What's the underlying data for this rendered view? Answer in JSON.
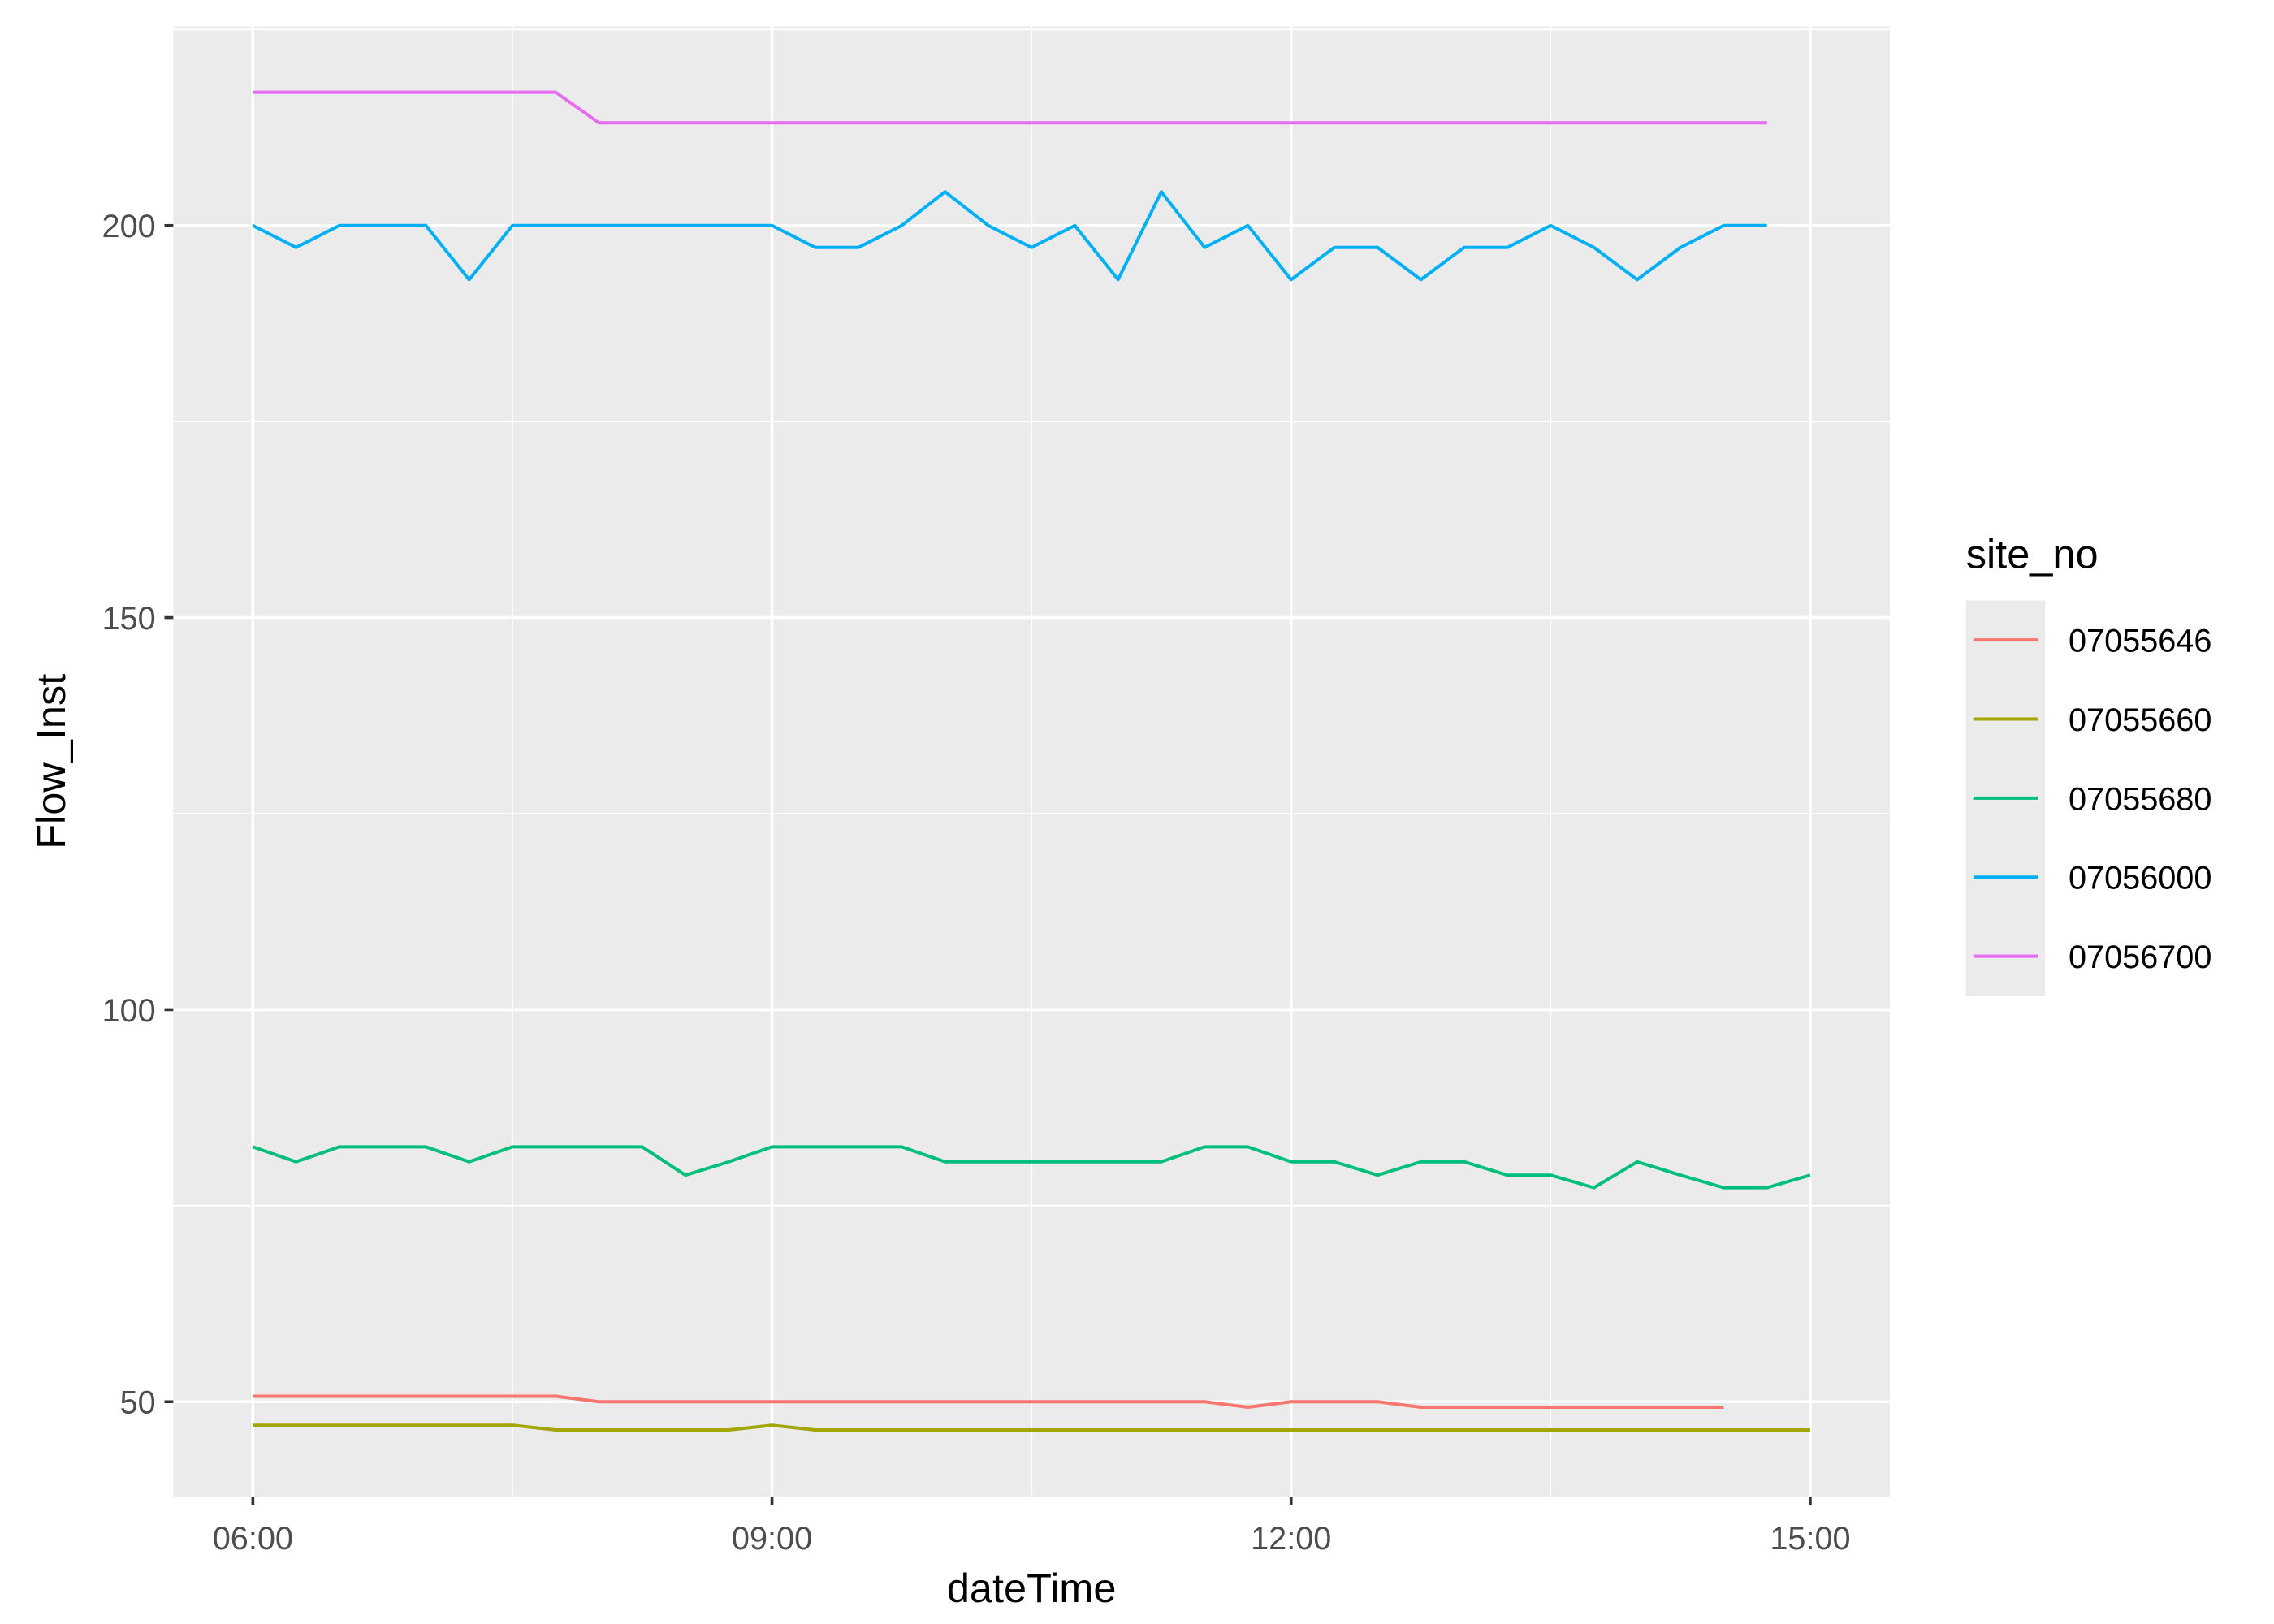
{
  "chart_data": {
    "type": "line",
    "x_label": "dateTime",
    "y_label": "Flow_Inst",
    "legend_title": "site_no",
    "legend_position": "right",
    "grid": true,
    "xlim": [
      5.54,
      15.46
    ],
    "ylim": [
      37.9,
      225.4
    ],
    "xticks": [
      {
        "value": 6,
        "label": "06:00"
      },
      {
        "value": 9,
        "label": "09:00"
      },
      {
        "value": 12,
        "label": "12:00"
      },
      {
        "value": 15,
        "label": "15:00"
      }
    ],
    "yticks": [
      50,
      100,
      150,
      200
    ],
    "series": [
      {
        "name": "07055646",
        "color": "#f8766d",
        "x": [
          6,
          6.25,
          6.5,
          6.75,
          7,
          7.25,
          7.5,
          7.75,
          8,
          8.25,
          8.5,
          8.75,
          9,
          9.25,
          9.5,
          9.75,
          10,
          10.25,
          10.5,
          10.75,
          11,
          11.25,
          11.5,
          11.75,
          12,
          12.25,
          12.5,
          12.75,
          13,
          13.25,
          13.5,
          13.75,
          14,
          14.25,
          14.5
        ],
        "values": [
          50.7,
          50.7,
          50.7,
          50.7,
          50.7,
          50.7,
          50.7,
          50.7,
          50,
          50,
          50,
          50,
          50,
          50,
          50,
          50,
          50,
          50,
          50,
          50,
          50,
          50,
          50,
          49.3,
          50,
          50,
          50,
          49.3,
          49.3,
          49.3,
          49.3,
          49.3,
          49.3,
          49.3,
          49.3
        ]
      },
      {
        "name": "07055660",
        "color": "#a3a500",
        "x": [
          6,
          6.25,
          6.5,
          6.75,
          7,
          7.25,
          7.5,
          7.75,
          8,
          8.25,
          8.5,
          8.75,
          9,
          9.25,
          9.5,
          9.75,
          10,
          10.25,
          10.5,
          10.75,
          11,
          11.25,
          11.5,
          11.75,
          12,
          12.25,
          12.5,
          12.75,
          13,
          13.25,
          13.5,
          13.75,
          14,
          14.25,
          14.5,
          14.75,
          15
        ],
        "values": [
          47,
          47,
          47,
          47,
          47,
          47,
          47,
          46.4,
          46.4,
          46.4,
          46.4,
          46.4,
          47,
          46.4,
          46.4,
          46.4,
          46.4,
          46.4,
          46.4,
          46.4,
          46.4,
          46.4,
          46.4,
          46.4,
          46.4,
          46.4,
          46.4,
          46.4,
          46.4,
          46.4,
          46.4,
          46.4,
          46.4,
          46.4,
          46.4,
          46.4,
          46.4
        ]
      },
      {
        "name": "07055680",
        "color": "#00bf7d",
        "x": [
          6,
          6.25,
          6.5,
          6.75,
          7,
          7.25,
          7.5,
          7.75,
          8,
          8.25,
          8.5,
          8.75,
          9,
          9.25,
          9.5,
          9.75,
          10,
          10.25,
          10.5,
          10.75,
          11,
          11.25,
          11.5,
          11.75,
          12,
          12.25,
          12.5,
          12.75,
          13,
          13.25,
          13.5,
          13.75,
          14,
          14.25,
          14.5,
          14.75,
          15
        ],
        "values": [
          82.5,
          80.6,
          82.5,
          82.5,
          82.5,
          80.6,
          82.5,
          82.5,
          82.5,
          82.5,
          78.9,
          80.6,
          82.5,
          82.5,
          82.5,
          82.5,
          80.6,
          80.6,
          80.6,
          80.6,
          80.6,
          80.6,
          82.5,
          82.5,
          80.6,
          80.6,
          78.9,
          80.6,
          80.6,
          78.9,
          78.9,
          77.3,
          80.6,
          78.9,
          77.3,
          77.3,
          78.9
        ]
      },
      {
        "name": "07056000",
        "color": "#00b0f6",
        "x": [
          6,
          6.25,
          6.5,
          6.75,
          7,
          7.25,
          7.5,
          7.75,
          8,
          8.25,
          8.5,
          8.75,
          9,
          9.25,
          9.5,
          9.75,
          10,
          10.25,
          10.5,
          10.75,
          11,
          11.25,
          11.5,
          11.75,
          12,
          12.25,
          12.5,
          12.75,
          13,
          13.25,
          13.5,
          13.75,
          14,
          14.25,
          14.5,
          14.75
        ],
        "values": [
          200,
          197.2,
          200,
          200,
          200,
          193.1,
          200,
          200,
          200,
          200,
          200,
          200,
          200,
          197.2,
          197.2,
          200,
          204.3,
          200,
          197.2,
          200,
          193.1,
          204.3,
          197.2,
          200,
          193.1,
          197.2,
          197.2,
          193.1,
          197.2,
          197.2,
          200,
          197.2,
          193.1,
          197.2,
          200,
          200
        ]
      },
      {
        "name": "07056700",
        "color": "#e76bf3",
        "x": [
          6,
          6.25,
          6.5,
          6.75,
          7,
          7.25,
          7.5,
          7.75,
          8,
          8.25,
          8.5,
          8.75,
          9,
          9.25,
          9.5,
          9.75,
          10,
          10.25,
          10.5,
          10.75,
          11,
          11.25,
          11.5,
          11.75,
          12,
          12.25,
          12.5,
          12.75,
          13,
          13.25,
          13.5,
          13.75,
          14,
          14.25,
          14.5,
          14.75
        ],
        "values": [
          217,
          217,
          217,
          217,
          217,
          217,
          217,
          217,
          213.1,
          213.1,
          213.1,
          213.1,
          213.1,
          213.1,
          213.1,
          213.1,
          213.1,
          213.1,
          213.1,
          213.1,
          213.1,
          213.1,
          213.1,
          213.1,
          213.1,
          213.1,
          213.1,
          213.1,
          213.1,
          213.1,
          213.1,
          213.1,
          213.1,
          213.1,
          213.1,
          213.1
        ]
      }
    ]
  }
}
